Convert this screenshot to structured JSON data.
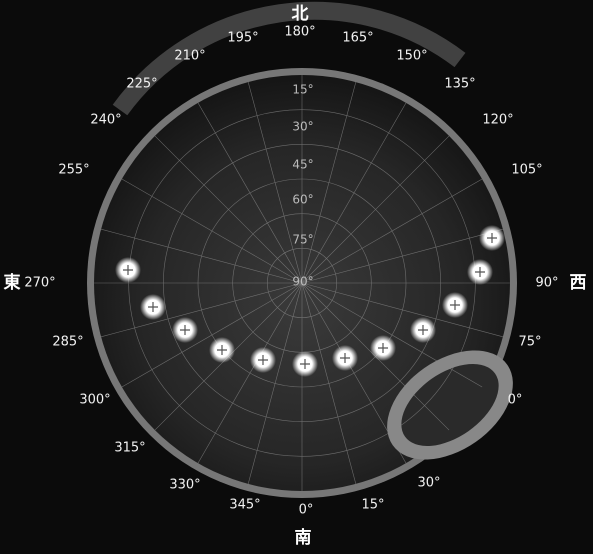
{
  "directions": {
    "north": "北",
    "south": "南",
    "east": "東",
    "west": "西"
  },
  "azimuth_labels": [
    "180°",
    "195°",
    "165°",
    "210°",
    "150°",
    "225°",
    "135°",
    "240°",
    "120°",
    "255°",
    "105°",
    "270°",
    "90°",
    "285°",
    "75°",
    "300°",
    "0°",
    "315°",
    "330°",
    "30°",
    "345°",
    "15°",
    "0°"
  ],
  "elevation_labels": [
    "15°",
    "30°",
    "45°",
    "60°",
    "75°",
    "90°"
  ]
}
